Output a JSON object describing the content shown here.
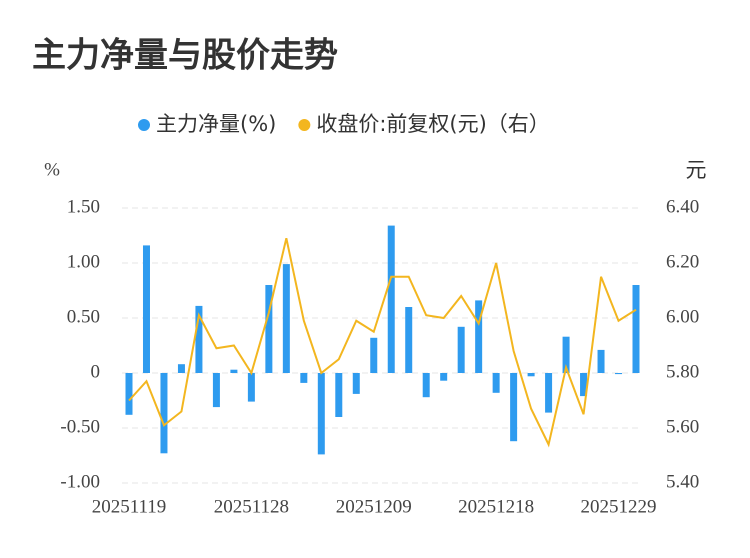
{
  "chart_data": {
    "type": "bar",
    "title": "主力净量与股价走势",
    "y_label": "%",
    "y2_label": "元",
    "categories": [
      "20251119",
      null,
      null,
      null,
      null,
      null,
      null,
      "20251128",
      null,
      null,
      null,
      null,
      null,
      null,
      "20251209",
      null,
      null,
      null,
      null,
      null,
      null,
      "20251218",
      null,
      null,
      null,
      null,
      null,
      null,
      "20251229",
      null
    ],
    "series": [
      {
        "name": "主力净量(%)",
        "type": "bar",
        "color": "#2e9bef",
        "values": [
          -0.38,
          1.16,
          -0.73,
          0.08,
          0.61,
          -0.31,
          0.03,
          -0.26,
          0.8,
          0.99,
          -0.09,
          -0.74,
          -0.4,
          -0.19,
          0.32,
          1.34,
          0.6,
          -0.22,
          -0.07,
          0.42,
          0.66,
          -0.18,
          -0.62,
          -0.03,
          -0.36,
          0.33,
          -0.21,
          0.21,
          -0.01,
          0.8
        ]
      },
      {
        "name": "收盘价:前复权(元)（右）",
        "type": "line",
        "axis": "y2",
        "color": "#f3b61f",
        "values": [
          5.7,
          5.77,
          5.61,
          5.66,
          6.01,
          5.89,
          5.9,
          5.8,
          6.02,
          6.29,
          5.99,
          5.8,
          5.85,
          5.99,
          5.95,
          6.15,
          6.15,
          6.01,
          6.0,
          6.08,
          5.98,
          6.2,
          5.88,
          5.67,
          5.54,
          5.82,
          5.65,
          6.15,
          5.99,
          6.03
        ]
      }
    ],
    "ylim": [
      -1.0,
      1.5
    ],
    "yticks": [
      {
        "value": -1.0,
        "label": "-1.00"
      },
      {
        "value": -0.5,
        "label": "-0.50"
      },
      0,
      {
        "value": 0.5,
        "label": "0.50"
      },
      {
        "value": 1.0,
        "label": "1.00"
      },
      {
        "value": 1.5,
        "label": "1.50"
      }
    ],
    "y2lim": [
      5.4,
      6.4
    ],
    "y2ticks": [
      {
        "value": 5.4,
        "label": "5.40"
      },
      {
        "value": 5.6,
        "label": "5.60"
      },
      {
        "value": 5.8,
        "label": "5.80"
      },
      {
        "value": 6.0,
        "label": "6.00"
      },
      {
        "value": 6.2,
        "label": "6.20"
      },
      {
        "value": 6.4,
        "label": "6.40"
      }
    ],
    "grid": true,
    "legend": "top"
  }
}
